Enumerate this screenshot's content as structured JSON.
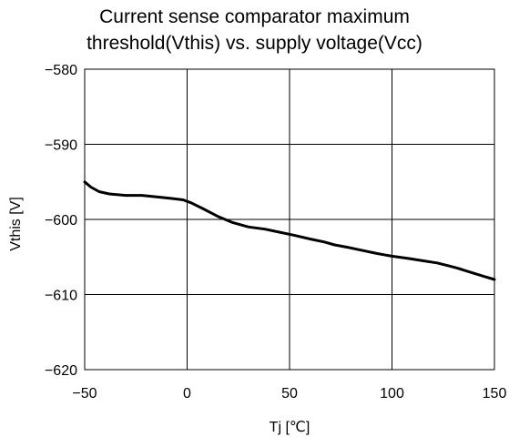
{
  "chart_data": {
    "type": "line",
    "title": "Current sense comparator maximum threshold(Vthis) vs. supply voltage(Vcc)",
    "title_lines": [
      "Current sense comparator maximum",
      "threshold(Vthis) vs. supply voltage(Vcc)"
    ],
    "xlabel": "Tj [℃]",
    "ylabel": "Vthis [V]",
    "xlim": [
      -50,
      150
    ],
    "ylim": [
      -620,
      -580
    ],
    "x_ticks": [
      -50,
      0,
      50,
      100,
      150
    ],
    "x_tick_labels": [
      "−50",
      "0",
      "50",
      "100",
      "150"
    ],
    "y_ticks": [
      -620,
      -610,
      -600,
      -590,
      -580
    ],
    "y_tick_labels": [
      "−620",
      "−610",
      "−600",
      "−590",
      "−580"
    ],
    "grid": true,
    "line_color": "#000000",
    "series": [
      {
        "x": [
          -50,
          -47,
          -43,
          -38,
          -30,
          -22,
          -15,
          -8,
          -2,
          2,
          8,
          15,
          22,
          30,
          38,
          45,
          52,
          60,
          67,
          72,
          78,
          85,
          92,
          96,
          100,
          108,
          115,
          122,
          128,
          132,
          138,
          145,
          150
        ],
        "y": [
          -595.0,
          -595.7,
          -596.3,
          -596.6,
          -596.8,
          -596.8,
          -597.0,
          -597.2,
          -597.4,
          -597.8,
          -598.6,
          -599.6,
          -600.4,
          -601.0,
          -601.3,
          -601.7,
          -602.1,
          -602.6,
          -603.0,
          -603.4,
          -603.7,
          -604.1,
          -604.5,
          -604.7,
          -604.9,
          -605.2,
          -605.5,
          -605.8,
          -606.2,
          -606.5,
          -607.0,
          -607.6,
          -608.0
        ]
      }
    ]
  }
}
